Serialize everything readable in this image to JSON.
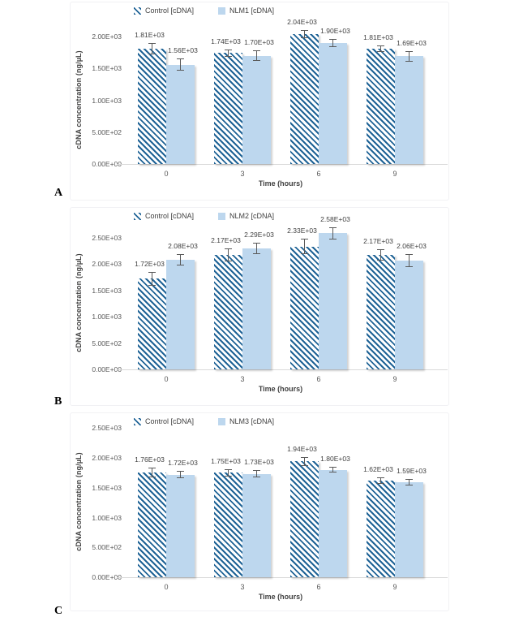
{
  "figure": {
    "description": "Three stacked grouped bar charts comparing cDNA concentration of Control vs NLM treatments over time",
    "panel_letters": [
      "A",
      "B",
      "C"
    ]
  },
  "colors": {
    "control_hatch_stripe": "#1f6396",
    "nlm_fill": "#bdd7ee",
    "error_bar": "#595959",
    "data_label": "#404040",
    "tick_label": "#595959",
    "axis_line": "#d9d9d9"
  },
  "chart_data": [
    {
      "type": "bar",
      "panel_letter": "A",
      "title": "",
      "xlabel": "Time (hours)",
      "ylabel": "cDNA concentration (ng/µL)",
      "categories": [
        "0",
        "3",
        "6",
        "9"
      ],
      "legend_position": "top",
      "grid": false,
      "ylim": [
        0,
        2200
      ],
      "yticks": {
        "values": [
          0,
          500,
          1000,
          1500,
          2000
        ],
        "labels": [
          "0.00E+00",
          "5.00E+02",
          "1.00E+03",
          "1.50E+03",
          "2.00E+03"
        ]
      },
      "series": [
        {
          "name": "Control [cDNA]",
          "style": "hatched",
          "values": [
            1810,
            1740,
            2040,
            1810
          ],
          "labels": [
            "1.81E+03",
            "1.74E+03",
            "2.04E+03",
            "1.81E+03"
          ],
          "errors": [
            90,
            60,
            60,
            55
          ]
        },
        {
          "name": "NLM1 [cDNA]",
          "style": "solid",
          "values": [
            1560,
            1700,
            1900,
            1690
          ],
          "labels": [
            "1.56E+03",
            "1.70E+03",
            "1.90E+03",
            "1.69E+03"
          ],
          "errors": [
            90,
            80,
            60,
            80
          ]
        }
      ]
    },
    {
      "type": "bar",
      "panel_letter": "B",
      "title": "",
      "xlabel": "Time (hours)",
      "ylabel": "cDNA concentration (ng/µL)",
      "categories": [
        "0",
        "3",
        "6",
        "9"
      ],
      "legend_position": "top",
      "grid": false,
      "ylim": [
        0,
        2750
      ],
      "yticks": {
        "values": [
          0,
          500,
          1000,
          1500,
          2000,
          2500
        ],
        "labels": [
          "0.00E+00",
          "5.00E+02",
          "1.00E+03",
          "1.50E+03",
          "2.00E+03",
          "2.50E+03"
        ]
      },
      "series": [
        {
          "name": "Control [cDNA]",
          "style": "hatched",
          "values": [
            1720,
            2170,
            2330,
            2170
          ],
          "labels": [
            "1.72E+03",
            "2.17E+03",
            "2.33E+03",
            "2.17E+03"
          ],
          "errors": [
            130,
            130,
            140,
            110
          ]
        },
        {
          "name": "NLM2 [cDNA]",
          "style": "solid",
          "values": [
            2080,
            2290,
            2580,
            2060
          ],
          "labels": [
            "2.08E+03",
            "2.29E+03",
            "2.58E+03",
            "2.06E+03"
          ],
          "errors": [
            110,
            110,
            120,
            120
          ]
        }
      ]
    },
    {
      "type": "bar",
      "panel_letter": "C",
      "title": "",
      "xlabel": "Time (hours)",
      "ylabel": "cDNA concentration (ng/µL)",
      "categories": [
        "0",
        "3",
        "6",
        "9"
      ],
      "legend_position": "top",
      "grid": false,
      "ylim": [
        0,
        2700
      ],
      "yticks": {
        "values": [
          0,
          500,
          1000,
          1500,
          2000,
          2500
        ],
        "labels": [
          "0.00E+00",
          "5.00E+02",
          "1.00E+03",
          "1.50E+03",
          "2.00E+03",
          "2.50E+03"
        ]
      },
      "series": [
        {
          "name": "Control [cDNA]",
          "style": "hatched",
          "values": [
            1760,
            1750,
            1940,
            1620
          ],
          "labels": [
            "1.76E+03",
            "1.75E+03",
            "1.94E+03",
            "1.62E+03"
          ],
          "errors": [
            80,
            60,
            70,
            60
          ]
        },
        {
          "name": "NLM3 [cDNA]",
          "style": "solid",
          "values": [
            1720,
            1730,
            1800,
            1590
          ],
          "labels": [
            "1.72E+03",
            "1.73E+03",
            "1.80E+03",
            "1.59E+03"
          ],
          "errors": [
            60,
            60,
            50,
            50
          ]
        }
      ]
    }
  ]
}
